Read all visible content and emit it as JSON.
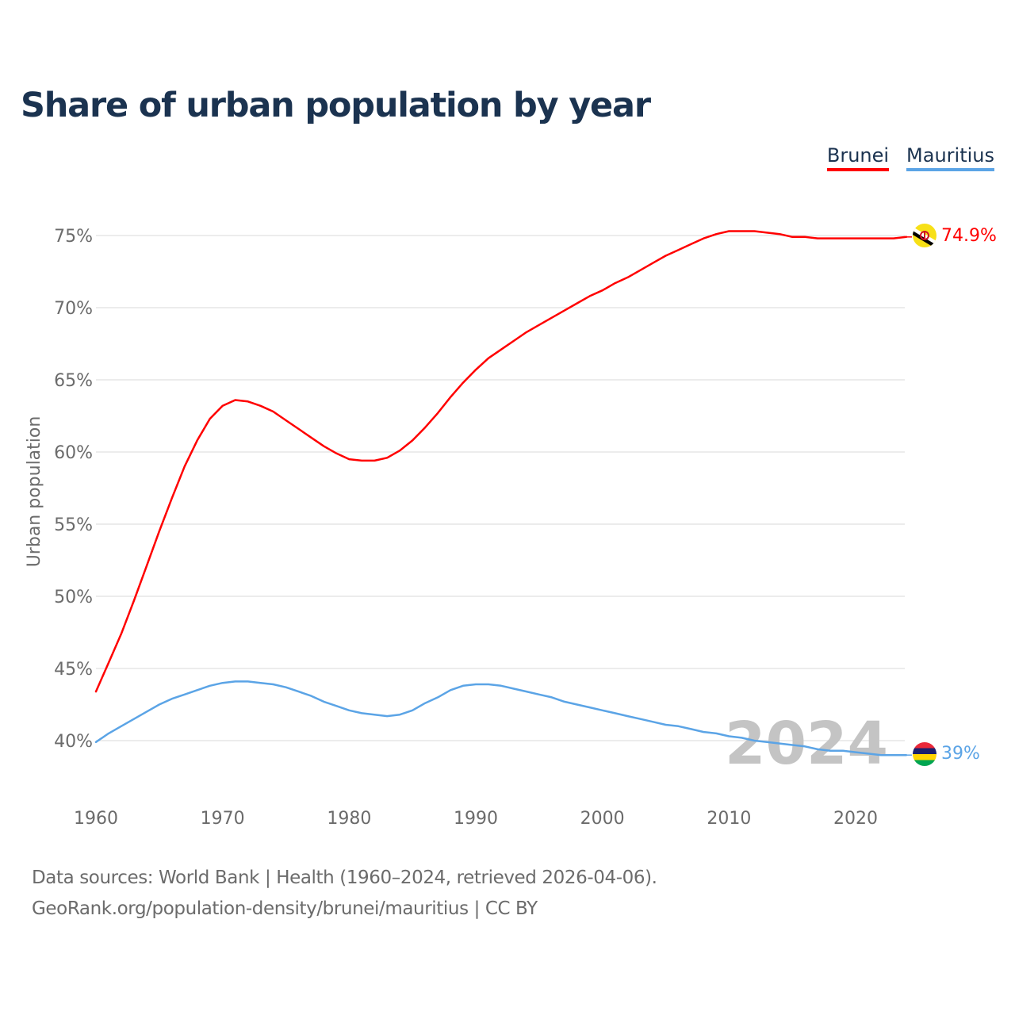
{
  "title": "Share of urban population by year",
  "legend": [
    {
      "label": "Brunei",
      "color": "#ff0000"
    },
    {
      "label": "Mauritius",
      "color": "#5ba4e6"
    }
  ],
  "footer": {
    "line1": "Data sources: World Bank | Health (1960–2024, retrieved 2026-04-06).",
    "line2": "GeoRank.org/population-density/brunei/mauritius | CC BY"
  },
  "chart_data": {
    "type": "line",
    "title": "Share of urban population by year",
    "ylabel": "Urban population",
    "xlabel": "",
    "xlim": [
      1960,
      2024
    ],
    "ylim": [
      37,
      77
    ],
    "x_ticks": [
      1960,
      1970,
      1980,
      1990,
      2000,
      2010,
      2020
    ],
    "y_ticks": [
      40,
      45,
      50,
      55,
      60,
      65,
      70,
      75
    ],
    "y_tick_labels": [
      "40%",
      "45%",
      "50%",
      "55%",
      "60%",
      "65%",
      "70%",
      "75%"
    ],
    "x_tick_labels": [
      "1960",
      "1970",
      "1980",
      "1990",
      "2000",
      "2010",
      "2020"
    ],
    "year_label": "2024",
    "grid": true,
    "legend_position": "top-right",
    "x": [
      1960,
      1961,
      1962,
      1963,
      1964,
      1965,
      1966,
      1967,
      1968,
      1969,
      1970,
      1971,
      1972,
      1973,
      1974,
      1975,
      1976,
      1977,
      1978,
      1979,
      1980,
      1981,
      1982,
      1983,
      1984,
      1985,
      1986,
      1987,
      1988,
      1989,
      1990,
      1991,
      1992,
      1993,
      1994,
      1995,
      1996,
      1997,
      1998,
      1999,
      2000,
      2001,
      2002,
      2003,
      2004,
      2005,
      2006,
      2007,
      2008,
      2009,
      2010,
      2011,
      2012,
      2013,
      2014,
      2015,
      2016,
      2017,
      2018,
      2019,
      2020,
      2021,
      2022,
      2023,
      2024
    ],
    "series": [
      {
        "name": "Brunei",
        "color": "#ff0000",
        "end_label": "74.9%",
        "values": [
          43.4,
          45.4,
          47.4,
          49.7,
          52.1,
          54.5,
          56.8,
          59.0,
          60.8,
          62.3,
          63.2,
          63.6,
          63.5,
          63.2,
          62.8,
          62.2,
          61.6,
          61.0,
          60.4,
          59.9,
          59.5,
          59.4,
          59.4,
          59.6,
          60.1,
          60.8,
          61.7,
          62.7,
          63.8,
          64.8,
          65.7,
          66.5,
          67.1,
          67.7,
          68.3,
          68.8,
          69.3,
          69.8,
          70.3,
          70.8,
          71.2,
          71.7,
          72.1,
          72.6,
          73.1,
          73.6,
          74.0,
          74.4,
          74.8,
          75.1,
          75.3,
          75.3,
          75.3,
          75.2,
          75.1,
          74.9,
          74.9,
          74.8,
          74.8,
          74.8,
          74.8,
          74.8,
          74.8,
          74.8,
          74.9
        ]
      },
      {
        "name": "Mauritius",
        "color": "#5ba4e6",
        "end_label": "39%",
        "values": [
          39.9,
          40.5,
          41.0,
          41.5,
          42.0,
          42.5,
          42.9,
          43.2,
          43.5,
          43.8,
          44.0,
          44.1,
          44.1,
          44.0,
          43.9,
          43.7,
          43.4,
          43.1,
          42.7,
          42.4,
          42.1,
          41.9,
          41.8,
          41.7,
          41.8,
          42.1,
          42.6,
          43.0,
          43.5,
          43.8,
          43.9,
          43.9,
          43.8,
          43.6,
          43.4,
          43.2,
          43.0,
          42.7,
          42.5,
          42.3,
          42.1,
          41.9,
          41.7,
          41.5,
          41.3,
          41.1,
          41.0,
          40.8,
          40.6,
          40.5,
          40.3,
          40.2,
          40.0,
          39.9,
          39.8,
          39.7,
          39.6,
          39.4,
          39.3,
          39.3,
          39.2,
          39.1,
          39.0,
          39.0,
          39.0
        ]
      }
    ]
  }
}
